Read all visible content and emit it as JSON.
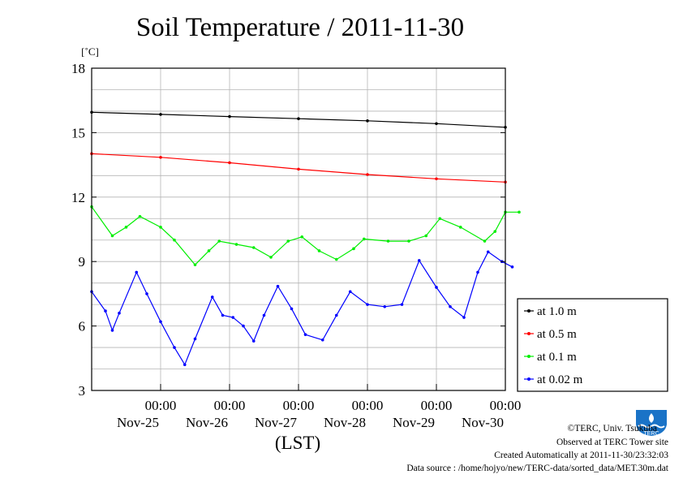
{
  "title": "Soil Temperature / 2011-11-30",
  "chart_data": {
    "type": "line",
    "title": "Soil Temperature / 2011-11-30",
    "ylabel": "[˚C]",
    "xlabel": "(LST)",
    "ylim": [
      3,
      18
    ],
    "y_ticks": [
      3,
      6,
      9,
      12,
      15,
      18
    ],
    "xlim": [
      0,
      6
    ],
    "x_ticks": [
      {
        "x": 1,
        "time": "00:00",
        "date": "Nov-25"
      },
      {
        "x": 2,
        "time": "00:00",
        "date": "Nov-26"
      },
      {
        "x": 3,
        "time": "00:00",
        "date": "Nov-27"
      },
      {
        "x": 4,
        "time": "00:00",
        "date": "Nov-28"
      },
      {
        "x": 5,
        "time": "00:00",
        "date": "Nov-29"
      },
      {
        "x": 6,
        "time": "00:00",
        "date": "Nov-30"
      }
    ],
    "x_unit": "days from start of record",
    "grid": true,
    "legend_position": "right",
    "series": [
      {
        "name": "at 1.0 m",
        "color": "#000000",
        "points": [
          [
            0,
            15.95
          ],
          [
            1,
            15.85
          ],
          [
            2,
            15.75
          ],
          [
            3,
            15.65
          ],
          [
            4,
            15.55
          ],
          [
            5,
            15.42
          ],
          [
            6,
            15.25
          ]
        ]
      },
      {
        "name": "at 0.5 m",
        "color": "#ff0000",
        "points": [
          [
            0,
            14.02
          ],
          [
            1,
            13.85
          ],
          [
            2,
            13.6
          ],
          [
            3,
            13.3
          ],
          [
            4,
            13.05
          ],
          [
            5,
            12.85
          ],
          [
            6,
            12.7
          ]
        ]
      },
      {
        "name": "at 0.1 m",
        "color": "#00ee00",
        "points": [
          [
            0,
            11.55
          ],
          [
            0.3,
            10.2
          ],
          [
            0.5,
            10.6
          ],
          [
            0.7,
            11.1
          ],
          [
            1.0,
            10.6
          ],
          [
            1.2,
            10.0
          ],
          [
            1.5,
            8.85
          ],
          [
            1.7,
            9.5
          ],
          [
            1.85,
            9.95
          ],
          [
            2.1,
            9.8
          ],
          [
            2.35,
            9.65
          ],
          [
            2.6,
            9.2
          ],
          [
            2.85,
            9.95
          ],
          [
            3.05,
            10.15
          ],
          [
            3.3,
            9.5
          ],
          [
            3.55,
            9.1
          ],
          [
            3.8,
            9.6
          ],
          [
            3.95,
            10.05
          ],
          [
            4.3,
            9.95
          ],
          [
            4.6,
            9.95
          ],
          [
            4.85,
            10.2
          ],
          [
            5.05,
            11.0
          ],
          [
            5.35,
            10.6
          ],
          [
            5.7,
            9.95
          ],
          [
            5.85,
            10.4
          ],
          [
            6.0,
            11.3
          ],
          [
            6.2,
            11.3
          ]
        ]
      },
      {
        "name": "at 0.02 m",
        "color": "#0000ff",
        "points": [
          [
            0,
            7.6
          ],
          [
            0.2,
            6.7
          ],
          [
            0.3,
            5.8
          ],
          [
            0.4,
            6.6
          ],
          [
            0.65,
            8.5
          ],
          [
            0.8,
            7.5
          ],
          [
            1.0,
            6.2
          ],
          [
            1.2,
            5.0
          ],
          [
            1.35,
            4.2
          ],
          [
            1.5,
            5.4
          ],
          [
            1.75,
            7.35
          ],
          [
            1.9,
            6.5
          ],
          [
            2.05,
            6.4
          ],
          [
            2.2,
            6.0
          ],
          [
            2.35,
            5.3
          ],
          [
            2.5,
            6.5
          ],
          [
            2.7,
            7.85
          ],
          [
            2.9,
            6.8
          ],
          [
            3.1,
            5.6
          ],
          [
            3.35,
            5.35
          ],
          [
            3.55,
            6.5
          ],
          [
            3.75,
            7.6
          ],
          [
            4.0,
            7.0
          ],
          [
            4.25,
            6.9
          ],
          [
            4.5,
            7.0
          ],
          [
            4.75,
            9.05
          ],
          [
            5.0,
            7.8
          ],
          [
            5.2,
            6.9
          ],
          [
            5.4,
            6.4
          ],
          [
            5.6,
            8.5
          ],
          [
            5.75,
            9.45
          ],
          [
            5.95,
            9.0
          ],
          [
            6.1,
            8.75
          ]
        ]
      }
    ]
  },
  "footer": {
    "copyright": "©TERC, Univ. Tsukuba",
    "observed": "Observed at TERC Tower site",
    "created": "Created Automatically at 2011-11-30/23:32:03",
    "source": "Data source : /home/hojyo/new/TERC-data/sorted_data/MET.30m.dat"
  },
  "logo": {
    "text": "TERC",
    "color": "#1a73c7"
  }
}
